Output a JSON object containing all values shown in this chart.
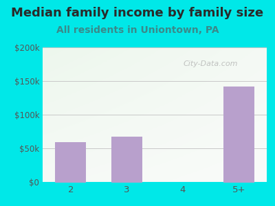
{
  "title": "Median family income by family size",
  "subtitle": "All residents in Uniontown, PA",
  "categories": [
    "2",
    "3",
    "4",
    "5+"
  ],
  "values": [
    60000,
    68000,
    0,
    142000
  ],
  "bar_color": "#b8a0cc",
  "background_color": "#00e8e8",
  "title_color": "#2a2a2a",
  "subtitle_color": "#3a8a8a",
  "tick_color": "#555555",
  "grid_color": "#c8c8c8",
  "ylim": [
    0,
    200000
  ],
  "yticks": [
    0,
    50000,
    100000,
    150000,
    200000
  ],
  "ytick_labels": [
    "$0",
    "$50k",
    "$100k",
    "$150k",
    "$200k"
  ],
  "watermark": "City-Data.com",
  "title_fontsize": 13,
  "subtitle_fontsize": 10
}
